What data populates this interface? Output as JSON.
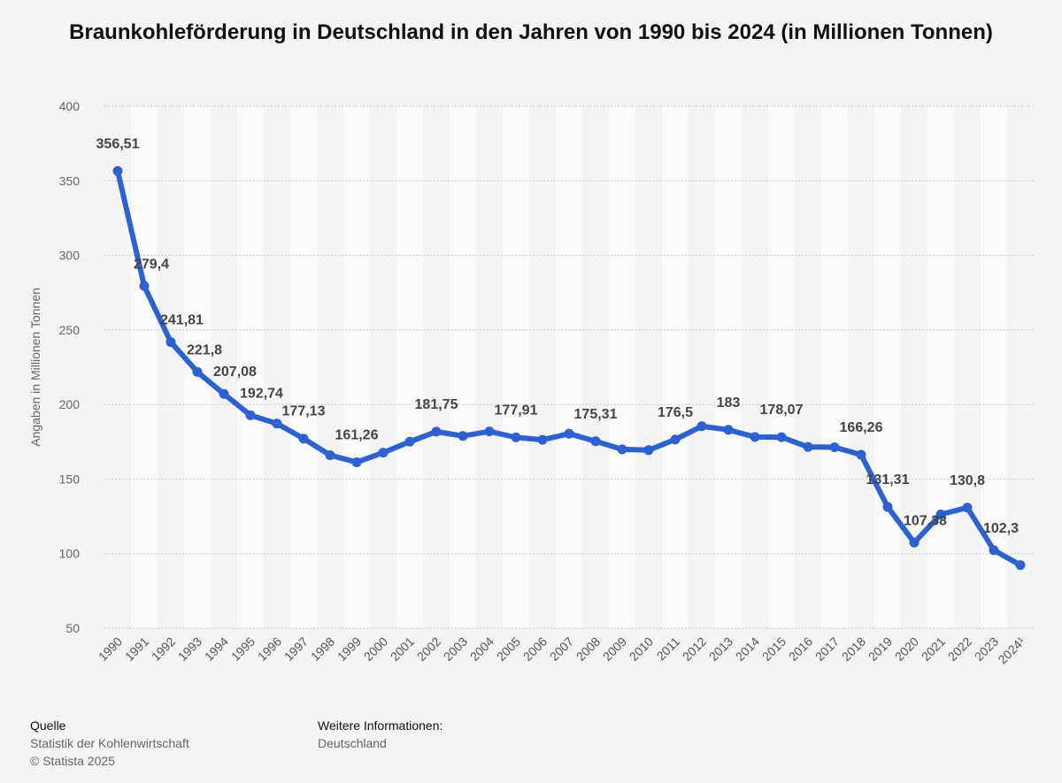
{
  "title": "Braunkohleförderung in Deutschland in den Jahren von 1990 bis 2024 (in Millionen Tonnen)",
  "footer": {
    "source_heading": "Quelle",
    "source_name": "Statistik der Kohlenwirtschaft",
    "copyright": "© Statista 2025",
    "info_heading": "Weitere Informationen:",
    "info_text": "Deutschland"
  },
  "colors": {
    "line": "#2a62d6",
    "background": "#f4f4f4",
    "band": "#fbfbfb"
  },
  "chart_data": {
    "type": "line",
    "title": "Braunkohleförderung in Deutschland in den Jahren von 1990 bis 2024 (in Millionen Tonnen)",
    "xlabel": "",
    "ylabel": "Angaben in Millionen Tonnen",
    "ylim": [
      50,
      400
    ],
    "yticks": [
      50,
      100,
      150,
      200,
      250,
      300,
      350,
      400
    ],
    "grid": true,
    "categories": [
      "1990",
      "1991",
      "1992",
      "1993",
      "1994",
      "1995",
      "1996",
      "1997",
      "1998",
      "1999",
      "2000",
      "2001",
      "2002",
      "2003",
      "2004",
      "2005",
      "2006",
      "2007",
      "2008",
      "2009",
      "2010",
      "2011",
      "2012",
      "2013",
      "2014",
      "2015",
      "2016",
      "2017",
      "2018",
      "2019",
      "2020",
      "2021",
      "2022",
      "2023",
      "2024¹"
    ],
    "series": [
      {
        "name": "Braunkohleförderung",
        "values": [
          356.51,
          279.4,
          241.81,
          221.8,
          207.08,
          192.74,
          187.2,
          177.13,
          166.0,
          161.26,
          167.7,
          175.0,
          181.75,
          178.9,
          181.9,
          177.91,
          176.3,
          180.4,
          175.31,
          169.9,
          169.4,
          176.5,
          185.4,
          183,
          178.2,
          178.07,
          171.5,
          171.3,
          166.26,
          131.31,
          107.38,
          126.3,
          130.8,
          102.3,
          92.3
        ]
      }
    ],
    "data_labels": [
      {
        "index": 0,
        "text": "356,51",
        "pos": "above"
      },
      {
        "index": 1,
        "text": "279,4",
        "pos": "right"
      },
      {
        "index": 2,
        "text": "241,81",
        "pos": "right"
      },
      {
        "index": 3,
        "text": "221,8",
        "pos": "right"
      },
      {
        "index": 4,
        "text": "207,08",
        "pos": "right"
      },
      {
        "index": 5,
        "text": "192,74",
        "pos": "right"
      },
      {
        "index": 7,
        "text": "177,13",
        "pos": "above"
      },
      {
        "index": 9,
        "text": "161,26",
        "pos": "above"
      },
      {
        "index": 12,
        "text": "181,75",
        "pos": "above"
      },
      {
        "index": 15,
        "text": "177,91",
        "pos": "above"
      },
      {
        "index": 18,
        "text": "175,31",
        "pos": "above"
      },
      {
        "index": 21,
        "text": "176,5",
        "pos": "above"
      },
      {
        "index": 23,
        "text": "183",
        "pos": "above"
      },
      {
        "index": 25,
        "text": "178,07",
        "pos": "above"
      },
      {
        "index": 28,
        "text": "166,26",
        "pos": "above"
      },
      {
        "index": 29,
        "text": "131,31",
        "pos": "above"
      },
      {
        "index": 30,
        "text": "107,38",
        "pos": "right"
      },
      {
        "index": 32,
        "text": "130,8",
        "pos": "above"
      },
      {
        "index": 33,
        "text": "102,3",
        "pos": "right"
      }
    ]
  }
}
